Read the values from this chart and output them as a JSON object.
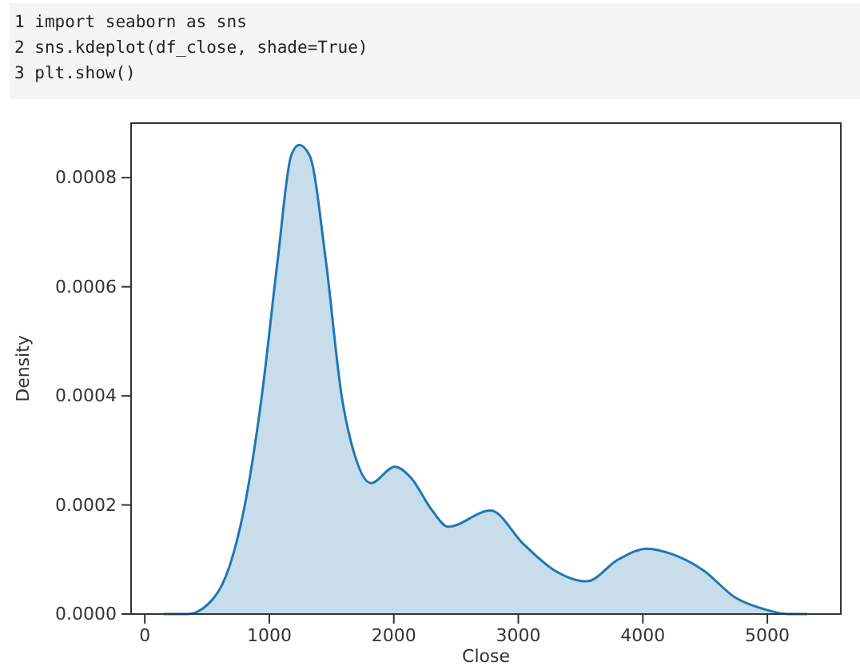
{
  "chart_data": {
    "type": "area",
    "xlabel": "Close",
    "ylabel": "Density",
    "annotations": [
      "1 import seaborn as sns",
      "2 sns.kdeplot(df_close, shade=True)",
      "3 plt.show()"
    ],
    "x": [
      150,
      342,
      556,
      684,
      812,
      940,
      1068,
      1175,
      1239,
      1325,
      1453,
      1581,
      1688,
      1816,
      2009,
      2137,
      2308,
      2436,
      2778,
      3034,
      3291,
      3547,
      3803,
      4038,
      4231,
      4487,
      4744,
      4957,
      5170,
      5320
    ],
    "series": [
      {
        "color": "#1f77b4",
        "values": [
          0,
          0,
          3e-05,
          9e-05,
          0.00021,
          0.0004,
          0.00065,
          0.00084,
          0.00086,
          0.00084,
          0.00065,
          0.0004,
          0.00029,
          0.00024,
          0.00027,
          0.00025,
          0.00019,
          0.00016,
          0.00019,
          0.00013,
          8e-05,
          6e-05,
          0.0001,
          0.00012,
          0.00011,
          8e-05,
          3e-05,
          1e-05,
          0,
          0
        ]
      }
    ],
    "xlim": [
      -110,
      5590
    ],
    "ylim": [
      0,
      0.0009
    ],
    "xticks": [
      0,
      1000,
      2000,
      3000,
      4000,
      5000
    ],
    "yticks": [
      {
        "value": 0,
        "label": "0.0000"
      },
      {
        "value": 0.0002,
        "label": "0.0002"
      },
      {
        "value": 0.0004,
        "label": "0.0004"
      },
      {
        "value": 0.0006,
        "label": "0.0006"
      },
      {
        "value": 0.0008,
        "label": "0.0008"
      }
    ],
    "grid": false
  }
}
